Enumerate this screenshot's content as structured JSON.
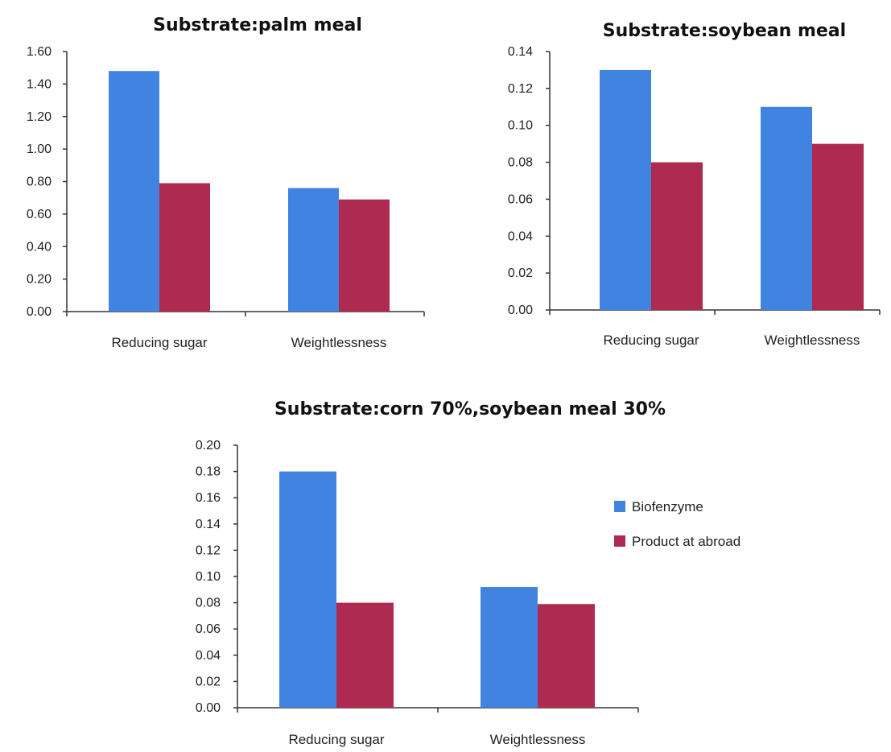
{
  "colors": {
    "biofenzyme": "#4183e0",
    "product_abroad": "#ae2a50"
  },
  "legend": {
    "items": [
      {
        "label": "Biofenzyme",
        "color_key": "biofenzyme"
      },
      {
        "label": "Product at abroad",
        "color_key": "product_abroad"
      }
    ]
  },
  "chart_data": [
    {
      "id": "palm",
      "type": "bar",
      "title": "Substrate:palm meal",
      "categories": [
        "Reducing sugar",
        "Weightlessness"
      ],
      "series": [
        {
          "name": "Biofenzyme",
          "values": [
            1.48,
            0.76
          ]
        },
        {
          "name": "Product at abroad",
          "values": [
            0.79,
            0.69
          ]
        }
      ],
      "ylim": [
        0,
        1.6
      ],
      "yticks": [
        "0.00",
        "0.20",
        "0.40",
        "0.60",
        "0.80",
        "1.00",
        "1.20",
        "1.40",
        "1.60"
      ],
      "xlabel": "",
      "ylabel": "",
      "grid": false,
      "legend": "none"
    },
    {
      "id": "soy",
      "type": "bar",
      "title": "Substrate:soybean meal",
      "categories": [
        "Reducing sugar",
        "Weightlessness"
      ],
      "series": [
        {
          "name": "Biofenzyme",
          "values": [
            0.13,
            0.11
          ]
        },
        {
          "name": "Product at abroad",
          "values": [
            0.08,
            0.09
          ]
        }
      ],
      "ylim": [
        0,
        0.14
      ],
      "yticks": [
        "0.00",
        "0.02",
        "0.04",
        "0.06",
        "0.08",
        "0.10",
        "0.12",
        "0.14"
      ],
      "xlabel": "",
      "ylabel": "",
      "grid": false,
      "legend": "none"
    },
    {
      "id": "corn",
      "type": "bar",
      "title": "Substrate:corn 70%,soybean meal 30%",
      "categories": [
        "Reducing sugar",
        "Weightlessness"
      ],
      "series": [
        {
          "name": "Biofenzyme",
          "values": [
            0.18,
            0.092
          ]
        },
        {
          "name": "Product at abroad",
          "values": [
            0.08,
            0.079
          ]
        }
      ],
      "ylim": [
        0,
        0.2
      ],
      "yticks": [
        "0.00",
        "0.02",
        "0.04",
        "0.06",
        "0.08",
        "0.10",
        "0.12",
        "0.14",
        "0.16",
        "0.18",
        "0.20"
      ],
      "xlabel": "",
      "ylabel": "",
      "grid": false,
      "legend": "right"
    }
  ]
}
